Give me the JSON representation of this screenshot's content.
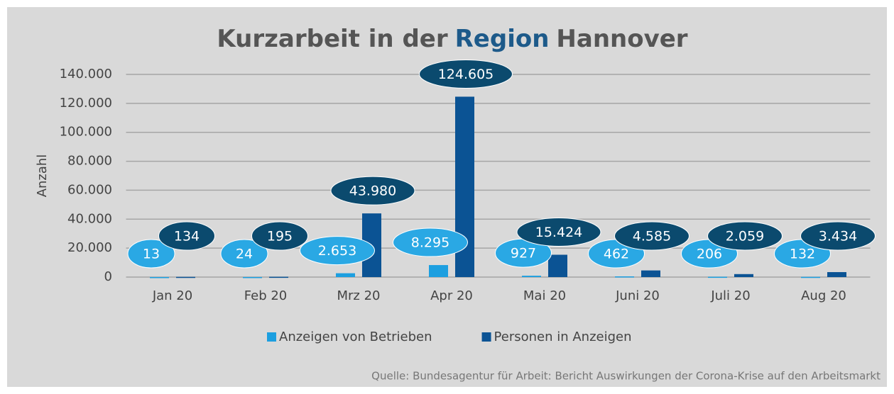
{
  "chart_data": {
    "type": "bar",
    "title": [
      "Kurzarbeit in der",
      "Region",
      "Hannover"
    ],
    "title_colors": [
      "#555555",
      "#1d5a8a",
      "#555555"
    ],
    "y_label": "Anzahl",
    "categories": [
      "Jan 20",
      "Feb 20",
      "Mrz 20",
      "Apr 20",
      "Mai 20",
      "Juni 20",
      "Juli 20",
      "Aug 20"
    ],
    "series": [
      {
        "name": "Anzeigen von Betrieben",
        "color": "#1c9fe0",
        "label_color": "#2aa8e4",
        "values": [
          13,
          24,
          2653,
          8295,
          927,
          462,
          206,
          132
        ],
        "value_labels": [
          "13",
          "24",
          "2.653",
          "8.295",
          "927",
          "462",
          "206",
          "132"
        ]
      },
      {
        "name": "Personen in Anzeigen",
        "color": "#0b5394",
        "label_color": "#0b4a6e",
        "values": [
          134,
          195,
          43980,
          124605,
          15424,
          4585,
          2059,
          3434
        ],
        "value_labels": [
          "134",
          "195",
          "43.980",
          "124.605",
          "15.424",
          "4.585",
          "2.059",
          "3.434"
        ]
      }
    ],
    "ylim": [
      0,
      140000
    ],
    "yticks": [
      0,
      {
        "value": 20000,
        "label": "20.000"
      },
      {
        "value": 40000,
        "label": "40.000"
      },
      {
        "value": 60000,
        "label": "60.000"
      },
      {
        "value": 80000,
        "label": "80.000"
      },
      {
        "value": 100000,
        "label": "100.000"
      },
      {
        "value": 120000,
        "label": "120.000"
      },
      {
        "value": 140000,
        "label": "140.000"
      }
    ],
    "grid": true,
    "source": "Quelle: Bundesagentur für Arbeit: Bericht Auswirkungen der Corona-Krise auf den Arbeitsmarkt"
  }
}
